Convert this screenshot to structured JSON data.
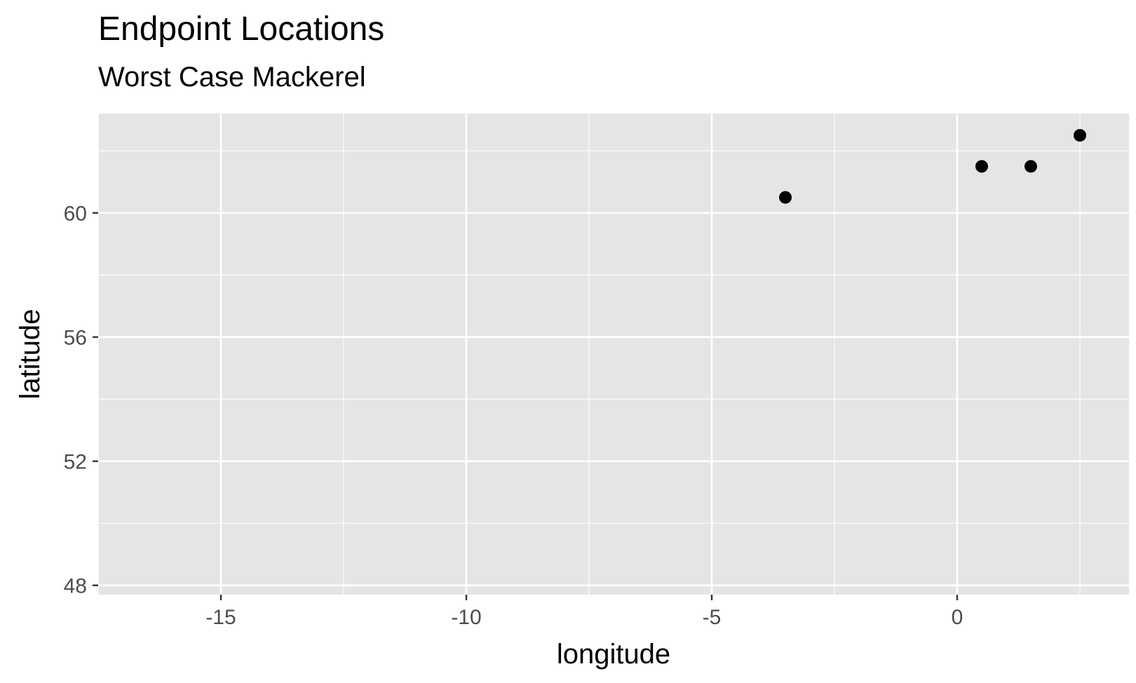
{
  "chart_data": {
    "type": "scatter",
    "title": "Endpoint Locations",
    "subtitle": "Worst Case Mackerel",
    "xlabel": "longitude",
    "ylabel": "latitude",
    "xlim": [
      -17.5,
      3.5
    ],
    "ylim": [
      47.7,
      63.2
    ],
    "x_ticks": [
      -15,
      -10,
      -5,
      0
    ],
    "x_tick_labels": [
      "-15",
      "-10",
      "-5",
      "0"
    ],
    "y_ticks": [
      48,
      52,
      56,
      60
    ],
    "y_tick_labels": [
      "48",
      "52",
      "56",
      "60"
    ],
    "grid": true,
    "legend": "none",
    "points": [
      {
        "x": -3.5,
        "y": 60.5
      },
      {
        "x": 0.5,
        "y": 61.5
      },
      {
        "x": 1.5,
        "y": 61.5
      },
      {
        "x": 2.5,
        "y": 62.5
      }
    ],
    "colors": {
      "panel": "#e5e5e5",
      "grid": "#ffffff",
      "point": "#000000",
      "tick_text": "#4d4d4d"
    }
  }
}
